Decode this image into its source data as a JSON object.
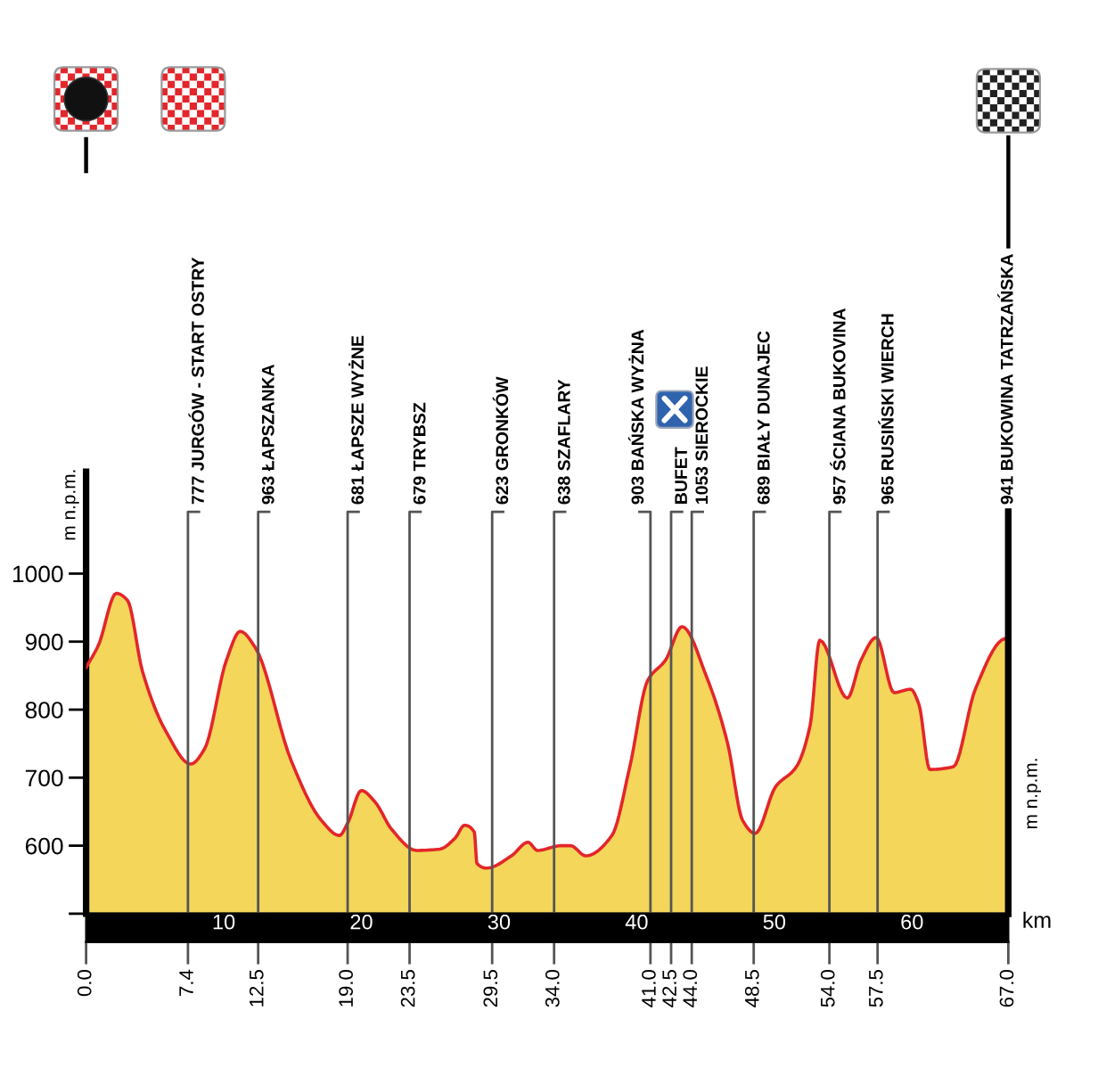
{
  "chart_data": {
    "type": "area",
    "color": "#f3d65a",
    "x": [
      0,
      0.9,
      2.2,
      3.0,
      4.1,
      5.8,
      7.6,
      8.6,
      10.2,
      11.2,
      12.3,
      14.9,
      17.1,
      18.4,
      19.0,
      20.0,
      21.0,
      22.2,
      24.0,
      25.7,
      26.8,
      27.5,
      28.2,
      28.4,
      29.1,
      30.9,
      32.1,
      32.8,
      34.5,
      35.2,
      36.3,
      38.2,
      39.5,
      40.8,
      42.1,
      43.3,
      45.1,
      46.6,
      47.7,
      48.6,
      50.1,
      51.6,
      52.6,
      53.3,
      55.3,
      56.3,
      57.4,
      58.7,
      59.9,
      60.5,
      61.3,
      63.0,
      64.6,
      66.7,
      67.0
    ],
    "values": [
      862,
      895,
      971,
      961,
      856,
      768,
      720,
      742,
      873,
      915,
      891,
      725,
      637,
      615,
      633,
      681,
      664,
      624,
      593,
      595,
      611,
      630,
      620,
      574,
      567,
      585,
      605,
      593,
      600,
      600,
      585,
      615,
      716,
      843,
      873,
      922,
      847,
      751,
      637,
      618,
      687,
      716,
      777,
      902,
      817,
      873,
      906,
      825,
      830,
      808,
      712,
      716,
      830,
      904,
      905
    ],
    "xlim": [
      0,
      67
    ],
    "xticks": [
      10,
      20,
      30,
      40,
      50,
      60
    ],
    "xlabel": "km",
    "x2lim": [
      0,
      67
    ],
    "x2ticks": [
      {
        "value": 0,
        "label": "0.0"
      },
      7.4,
      12.5,
      {
        "value": 19,
        "label": "19.0"
      },
      23.5,
      29.5,
      {
        "value": 34,
        "label": "34.0"
      },
      {
        "value": 41,
        "label": "41.0"
      },
      42.5,
      {
        "value": 44,
        "label": "44.0"
      },
      48.5,
      {
        "value": 54,
        "label": "54.0"
      },
      57.5,
      {
        "value": 67,
        "label": "67.0"
      }
    ],
    "ylim": [
      500,
      1150
    ],
    "yticks": [
      {
        "value": 500,
        "label": null
      },
      600,
      700,
      800,
      900,
      1000
    ],
    "ylabel": "m n.p.m.",
    "y2label": "m n.p.m.",
    "ref_lines": [
      {
        "axis": "x",
        "value": 7.4,
        "label": "777 JURGÓW - START OSTRY",
        "color": "#555555"
      },
      {
        "axis": "x",
        "value": 12.5,
        "label": "963 ŁAPSZANKA",
        "color": "#555555"
      },
      {
        "axis": "x",
        "value": 19.0,
        "label": "681 ŁAPSZE WYŻNE",
        "color": "#555555"
      },
      {
        "axis": "x",
        "value": 23.5,
        "label": "679 TRYBSZ",
        "color": "#555555"
      },
      {
        "axis": "x",
        "value": 29.5,
        "label": "623 GRONKÓW",
        "color": "#555555"
      },
      {
        "axis": "x",
        "value": 34.0,
        "label": "638 SZAFLARY",
        "color": "#555555"
      },
      {
        "axis": "x",
        "value": 41.0,
        "label": "903 BAŃSKA WYŻNA",
        "color": "#555555"
      },
      {
        "axis": "x",
        "value": 42.5,
        "label": "BUFET",
        "color": "#555555"
      },
      {
        "axis": "x",
        "value": 44.0,
        "label": "1053 SIEROCKIE",
        "color": "#555555"
      },
      {
        "axis": "x",
        "value": 48.5,
        "label": "689 BIAŁY DUNAJEC",
        "color": "#555555"
      },
      {
        "axis": "x",
        "value": 54.0,
        "label": "957 ŚCIANA BUKOVINA",
        "color": "#555555"
      },
      {
        "axis": "x",
        "value": 57.5,
        "label": "965 RUSIŃSKI WIERCH",
        "color": "#555555"
      },
      {
        "axis": "x",
        "value": 67.0,
        "label": "941 BUKOWINA TATRZAŃSKA",
        "color": "#000000"
      }
    ]
  }
}
